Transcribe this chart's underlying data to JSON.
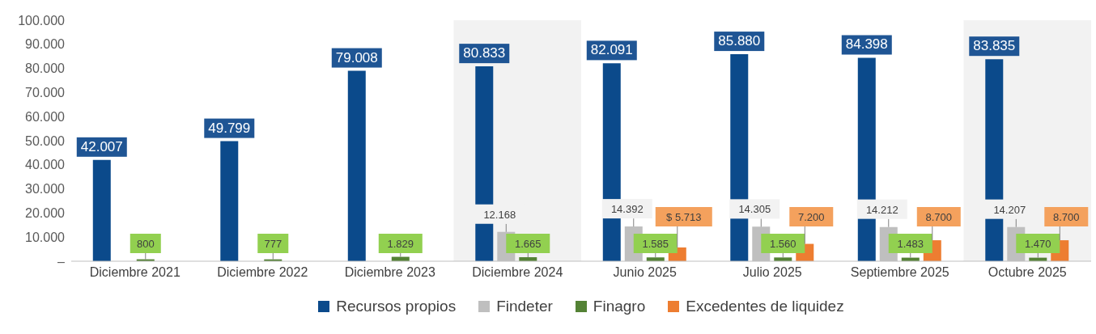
{
  "chart_data": {
    "type": "bar",
    "categories": [
      "Diciembre 2021",
      "Diciembre 2022",
      "Diciembre 2023",
      "Diciembre 2024",
      "Junio 2025",
      "Julio 2025",
      "Septiembre 2025",
      "Octubre 2025"
    ],
    "series": [
      {
        "name": "Recursos propios",
        "color": "#0b4a8b",
        "values": [
          42007,
          49799,
          79008,
          80833,
          82091,
          85880,
          84398,
          83835
        ],
        "value_labels": [
          "42.007",
          "49.799",
          "79.008",
          "80.833",
          "82.091",
          "85.880",
          "84.398",
          "83.835"
        ]
      },
      {
        "name": "Findeter",
        "color": "#bfbfbf",
        "values": [
          null,
          null,
          null,
          12168,
          14392,
          14305,
          14212,
          14207
        ],
        "value_labels": [
          null,
          null,
          null,
          "12.168",
          "14.392",
          "14.305",
          "14.212",
          "14.207"
        ]
      },
      {
        "name": "Finagro",
        "color": "#548235",
        "values": [
          800,
          777,
          1829,
          1665,
          1585,
          1560,
          1483,
          1470
        ],
        "value_labels": [
          "800",
          "777",
          "1.829",
          "1.665",
          "1.585",
          "1.560",
          "1.483",
          "1.470"
        ]
      },
      {
        "name": "Excedentes de liquidez",
        "color": "#ed7d31",
        "values": [
          null,
          null,
          null,
          null,
          5713,
          7200,
          8700,
          8700
        ],
        "value_labels": [
          null,
          null,
          null,
          null,
          "$ 5.713",
          "7.200",
          "8.700",
          "8.700"
        ]
      }
    ],
    "ylim": [
      0,
      100000
    ],
    "yticks": [
      {
        "value": 0,
        "label": "–"
      },
      {
        "value": 10000,
        "label": "10.000"
      },
      {
        "value": 20000,
        "label": "20.000"
      },
      {
        "value": 30000,
        "label": "30.000"
      },
      {
        "value": 40000,
        "label": "40.000"
      },
      {
        "value": 50000,
        "label": "50.000"
      },
      {
        "value": 60000,
        "label": "60.000"
      },
      {
        "value": 70000,
        "label": "70.000"
      },
      {
        "value": 80000,
        "label": "80.000"
      },
      {
        "value": 90000,
        "label": "90.000"
      },
      {
        "value": 100000,
        "label": "100.000"
      }
    ],
    "bands": [
      {
        "axis": "x",
        "from": "Diciembre 2024",
        "to": "Diciembre 2024",
        "color": "#f2f2f2"
      },
      {
        "axis": "x",
        "from": "Octubre 2025",
        "to": "Octubre 2025",
        "color": "#f2f2f2"
      }
    ],
    "grid": false,
    "legend": "bottom"
  }
}
